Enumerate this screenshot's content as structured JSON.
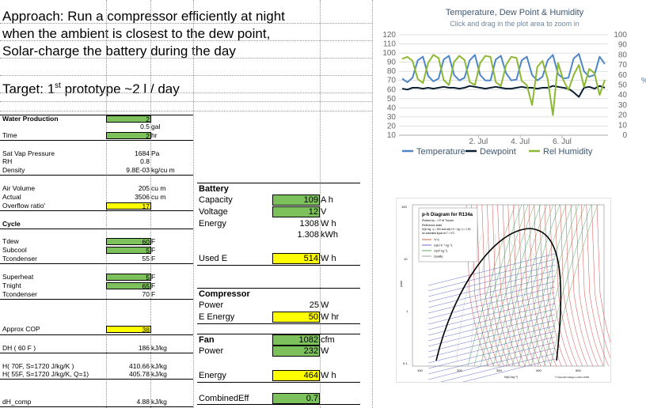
{
  "approach_lines": [
    "Approach: Run a compressor efficiently at night",
    "when the ambient is closest to the dew point,",
    "Solar-charge the battery during the day"
  ],
  "target": {
    "prefix": "Target: 1",
    "sup": "st",
    "rest": " prototype  ~2 l / day"
  },
  "left_sheet": {
    "water_production": "Water Production",
    "wp_value": "2",
    "gal_value": "0.5",
    "gal_unit": "gal",
    "time_label": "Time",
    "time_value": "2",
    "time_unit": "hr",
    "sat_vap_label": "Sat Vap Pressure",
    "sat_vap_value": "1684",
    "sat_vap_unit": "Pa",
    "rh_label": "RH",
    "rh_value": "0.8",
    "density_label": "Density",
    "density_value": "9.8E-03",
    "density_unit": "kg/cu m",
    "air_volume_label": "Air Volume",
    "air_volume_value": "205",
    "air_volume_unit": "cu m",
    "actual_label": "Actual",
    "actual_value": "3506",
    "actual_unit": "cu m",
    "overflow_label": "Overflow ratio'",
    "overflow_value": "17",
    "cycle_label": "Cycle",
    "tdew_label": "Tdew",
    "tdew_value": "60",
    "tdew_unit": "F",
    "subcool_label": "Subcool",
    "subcool_value": "5",
    "subcool_unit": "F",
    "tcond1_label": "Tcondenser",
    "tcond1_value": "55",
    "tcond1_unit": "F",
    "superheat_label": "Superheat",
    "superheat_value": "5",
    "superheat_unit": "F",
    "tnight_label": "Tnight",
    "tnight_value": "65",
    "tnight_unit": "F",
    "tcond2_label": "Tcondenser",
    "tcond2_value": "70",
    "tcond2_unit": "F",
    "cop_label": "Approx COP",
    "cop_value": "38",
    "dh_label": "DH ( 60 F )",
    "dh_value": "186",
    "dh_unit": "kJ/kg",
    "h70_label": "H( 70F, S=1720 J/kg/K )",
    "h70_value": "410.66",
    "h70_unit": "kJ/kg",
    "h55_label": "H( 55F, S=1720 J/kg/K, Q=1)",
    "h55_value": "405.78",
    "h55_unit": "kJ/kg",
    "dhcomp_label": "dH_comp",
    "dhcomp_value": "4.88",
    "dhcomp_unit": "kJ/kg"
  },
  "right_sheet": {
    "battery_label": "Battery",
    "capacity_label": "Capacity",
    "capacity_value": "109",
    "capacity_unit": "A h",
    "voltage_label": "Voltage",
    "voltage_value": "12",
    "voltage_unit": "V",
    "energy_label": "Energy",
    "energy_value": "1308",
    "energy_unit": "W h",
    "energy_kwh_value": "1.308",
    "energy_kwh_unit": "kWh",
    "used_e_label": "Used E",
    "used_e_value": "514",
    "used_e_unit": "W h",
    "compressor_label": "Compressor",
    "comp_power_label": "Power",
    "comp_power_value": "25",
    "comp_power_unit": "W",
    "e_energy_label": "E Energy",
    "e_energy_value": "50",
    "e_energy_unit": "W hr",
    "fan_label": "Fan",
    "fan_value": "1082",
    "fan_unit": "cfm",
    "fan_power_label": "Power",
    "fan_power_value": "232",
    "fan_power_unit": "W",
    "fan_energy_label": "Energy",
    "fan_energy_value": "464",
    "fan_energy_unit": "W h",
    "combined_label": "CombinedEff",
    "combined_value": "0.7"
  },
  "chart_data": {
    "type": "line",
    "title": "Temperature, Dew Point & Humidity",
    "subtitle": "Click and drag in the plot area to zoom in",
    "x_tick_labels": [
      "2. Jul",
      "4. Jul",
      "6. Jul"
    ],
    "left_axis": {
      "ticks": [
        "120",
        "110",
        "100",
        "90",
        "80",
        "70",
        "60",
        "50",
        "40",
        "30",
        "20",
        "10"
      ],
      "ylim": [
        10,
        120
      ]
    },
    "right_axis": {
      "ticks": [
        "100",
        "90",
        "80",
        "70",
        "60",
        "50",
        "40",
        "30",
        "20",
        "10",
        "0"
      ],
      "ylim": [
        0,
        100
      ],
      "label": "%"
    },
    "grid": true,
    "legend": [
      "Temperature",
      "Dewpoint",
      "Rel Humidity"
    ],
    "legend_placement": "bottom",
    "colors": {
      "temperature": "#4f86c6",
      "dewpoint": "#0a1e33",
      "humidity": "#8cb832"
    },
    "series": [
      {
        "name": "Temperature",
        "axis": "left",
        "values": [
          72,
          68,
          73,
          92,
          96,
          75,
          69,
          72,
          93,
          97,
          76,
          70,
          73,
          92,
          98,
          76,
          70,
          70,
          93,
          97,
          78,
          70,
          71,
          92,
          96,
          76,
          70,
          74,
          92,
          98,
          77,
          72,
          73,
          94,
          99,
          80,
          74,
          76,
          96,
          88
        ]
      },
      {
        "name": "Dewpoint",
        "axis": "left",
        "values": [
          61,
          60,
          62,
          62,
          61,
          62,
          61,
          62,
          63,
          62,
          62,
          61,
          62,
          64,
          63,
          62,
          61,
          62,
          63,
          62,
          61,
          61,
          62,
          63,
          62,
          62,
          61,
          62,
          62,
          64,
          63,
          62,
          61,
          57,
          52,
          62,
          63,
          61,
          64,
          62
        ]
      },
      {
        "name": "Rel Humidity",
        "axis": "right",
        "values": [
          76,
          78,
          74,
          56,
          52,
          72,
          80,
          77,
          55,
          50,
          73,
          79,
          75,
          53,
          50,
          72,
          79,
          78,
          53,
          49,
          70,
          78,
          77,
          54,
          50,
          30,
          68,
          74,
          56,
          20,
          72,
          55,
          45,
          60,
          70,
          48,
          66,
          62,
          40,
          55
        ]
      }
    ]
  },
  "ph_diagram": {
    "title": "p-h Diagram for R134a",
    "plotted_by": "Plotted by : J P M Trusler",
    "reference_state": "Reference state",
    "reference_note": "h/(kJ kg⁻¹) = 200 and s/(kJ K⁻¹ kg⁻¹) = 1.00",
    "reference_note2": "for saturated liquid at T = 0°C",
    "legend": [
      "T/°C",
      "s/(kJ K⁻¹ kg⁻¹)",
      "v/(m³ kg⁻¹)",
      "Quality"
    ],
    "ylabel": "p/bar",
    "xlabel": "h/(kJ kg⁻¹)",
    "y_ticks": [
      "100",
      "10",
      "1",
      "0.1"
    ],
    "x_ticks": [
      "100",
      "200",
      "300",
      "400",
      "500"
    ],
    "footer": "© Imperial College London 2003"
  }
}
